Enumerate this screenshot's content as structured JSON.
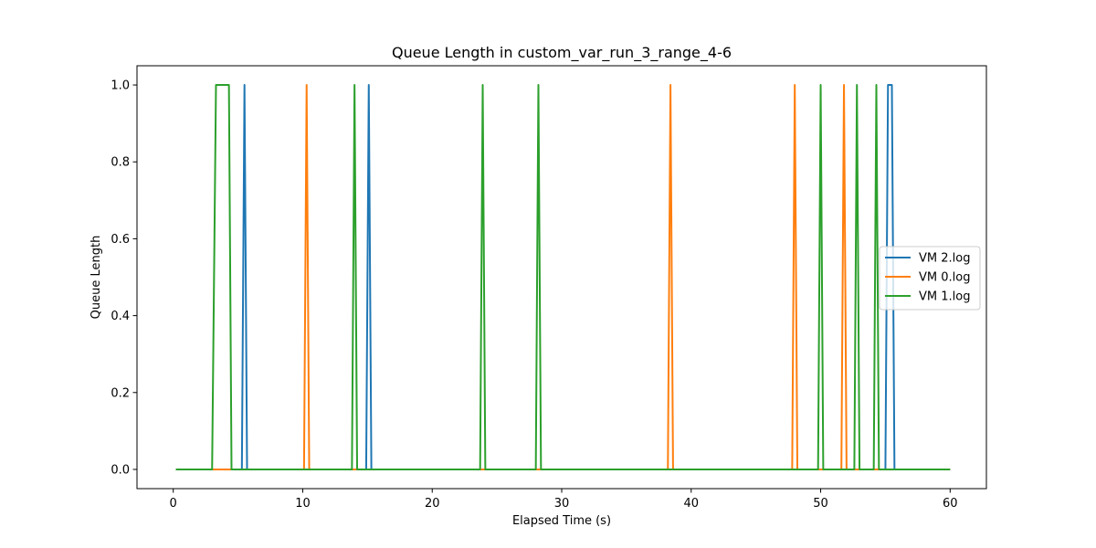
{
  "chart_data": {
    "type": "line",
    "title": "Queue Length in custom_var_run_3_range_4-6",
    "xlabel": "Elapsed Time (s)",
    "ylabel": "Queue Length",
    "xlim": [
      -2.8,
      62.8
    ],
    "ylim": [
      -0.05,
      1.05
    ],
    "xticks": [
      0,
      10,
      20,
      30,
      40,
      50,
      60
    ],
    "yticks": [
      0.0,
      0.2,
      0.4,
      0.6,
      0.8,
      1.0
    ],
    "xtick_labels": [
      "0",
      "10",
      "20",
      "30",
      "40",
      "50",
      "60"
    ],
    "ytick_labels": [
      "0.0",
      "0.2",
      "0.4",
      "0.6",
      "0.8",
      "1.0"
    ],
    "grid": false,
    "legend_position": "center-right",
    "series": [
      {
        "name": "VM 2.log",
        "color": "#1f77b4",
        "points": [
          [
            0.2,
            0
          ],
          [
            5.3,
            0
          ],
          [
            5.5,
            1
          ],
          [
            5.7,
            0
          ],
          [
            14.9,
            0
          ],
          [
            15.1,
            1
          ],
          [
            15.3,
            0
          ],
          [
            55.0,
            0
          ],
          [
            55.2,
            1
          ],
          [
            55.5,
            1
          ],
          [
            55.7,
            0
          ],
          [
            60.0,
            0
          ]
        ]
      },
      {
        "name": "VM 0.log",
        "color": "#ff7f0e",
        "points": [
          [
            0.2,
            0
          ],
          [
            10.1,
            0
          ],
          [
            10.3,
            1
          ],
          [
            10.5,
            0
          ],
          [
            38.2,
            0
          ],
          [
            38.4,
            1
          ],
          [
            38.6,
            0
          ],
          [
            47.8,
            0
          ],
          [
            48.0,
            1
          ],
          [
            48.2,
            0
          ],
          [
            51.6,
            0
          ],
          [
            51.8,
            1
          ],
          [
            52.0,
            0
          ],
          [
            60.0,
            0
          ]
        ]
      },
      {
        "name": "VM 1.log",
        "color": "#2ca02c",
        "points": [
          [
            0.2,
            0
          ],
          [
            3.0,
            0
          ],
          [
            3.3,
            1
          ],
          [
            4.3,
            1
          ],
          [
            4.5,
            0
          ],
          [
            13.8,
            0
          ],
          [
            14.0,
            1
          ],
          [
            14.2,
            0
          ],
          [
            23.7,
            0
          ],
          [
            23.9,
            1
          ],
          [
            24.1,
            0
          ],
          [
            28.0,
            0
          ],
          [
            28.2,
            1
          ],
          [
            28.4,
            0
          ],
          [
            49.8,
            0
          ],
          [
            50.0,
            1
          ],
          [
            50.2,
            0
          ],
          [
            52.6,
            0
          ],
          [
            52.8,
            1
          ],
          [
            53.0,
            0
          ],
          [
            54.1,
            0
          ],
          [
            54.3,
            1
          ],
          [
            54.5,
            0
          ],
          [
            60.0,
            0
          ]
        ]
      }
    ]
  }
}
